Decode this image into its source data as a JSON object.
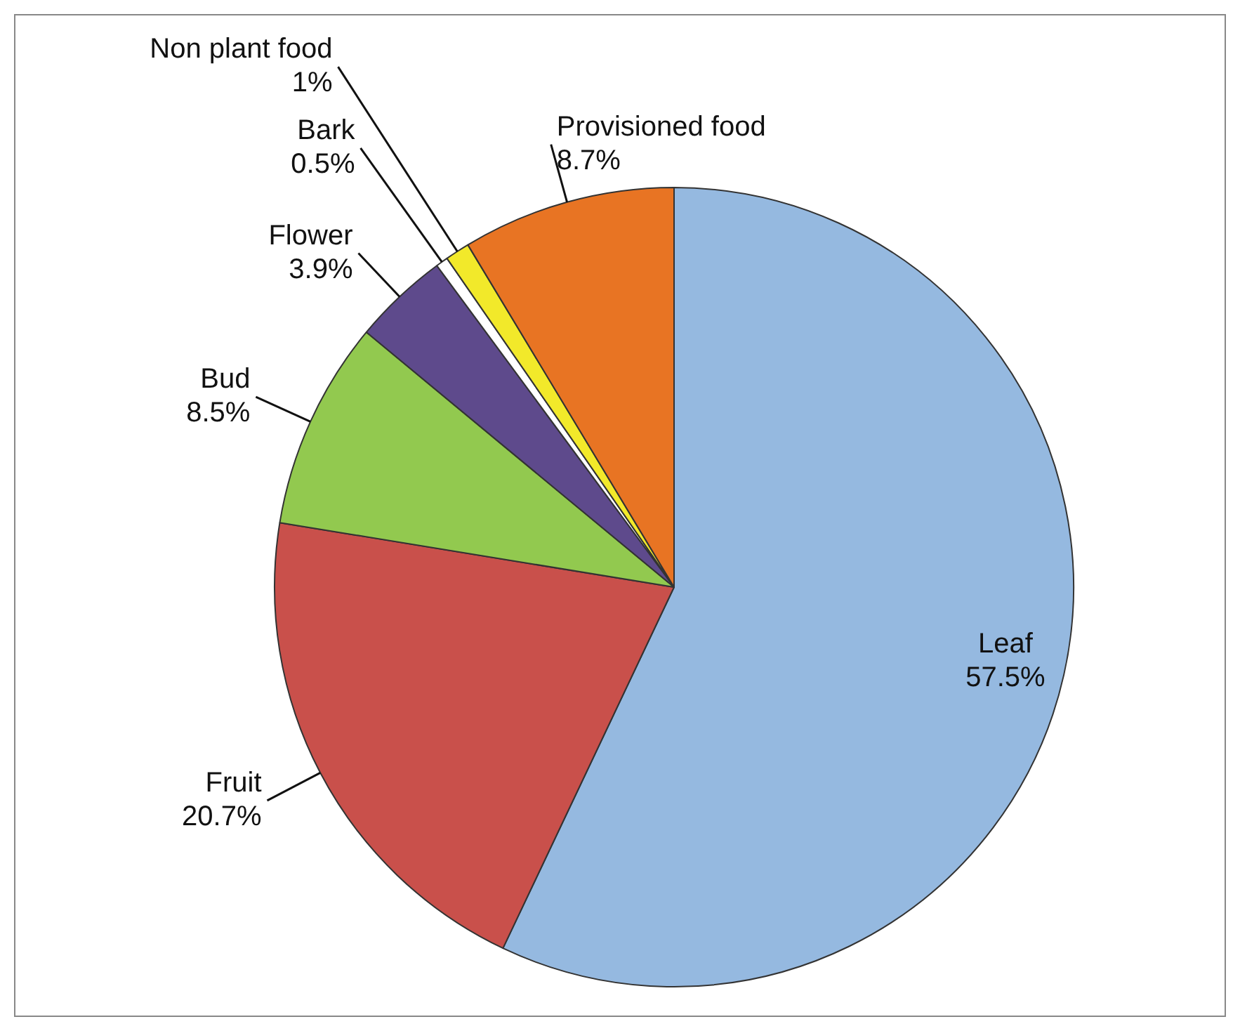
{
  "chart_data": {
    "type": "pie",
    "categories": [
      "Leaf",
      "Fruit",
      "Bud",
      "Flower",
      "Bark",
      "Non plant food",
      "Provisioned food"
    ],
    "values": [
      57.5,
      20.7,
      8.5,
      3.9,
      0.5,
      1,
      8.7
    ],
    "value_labels": [
      "57.5%",
      "20.7%",
      "8.5%",
      "3.9%",
      "0.5%",
      "1%",
      "8.7%"
    ],
    "colors": [
      "#95b9e0",
      "#c9504b",
      "#92c94f",
      "#5e4a8c",
      "#ffffff",
      "#f2e92a",
      "#e87423"
    ],
    "legend": false
  }
}
